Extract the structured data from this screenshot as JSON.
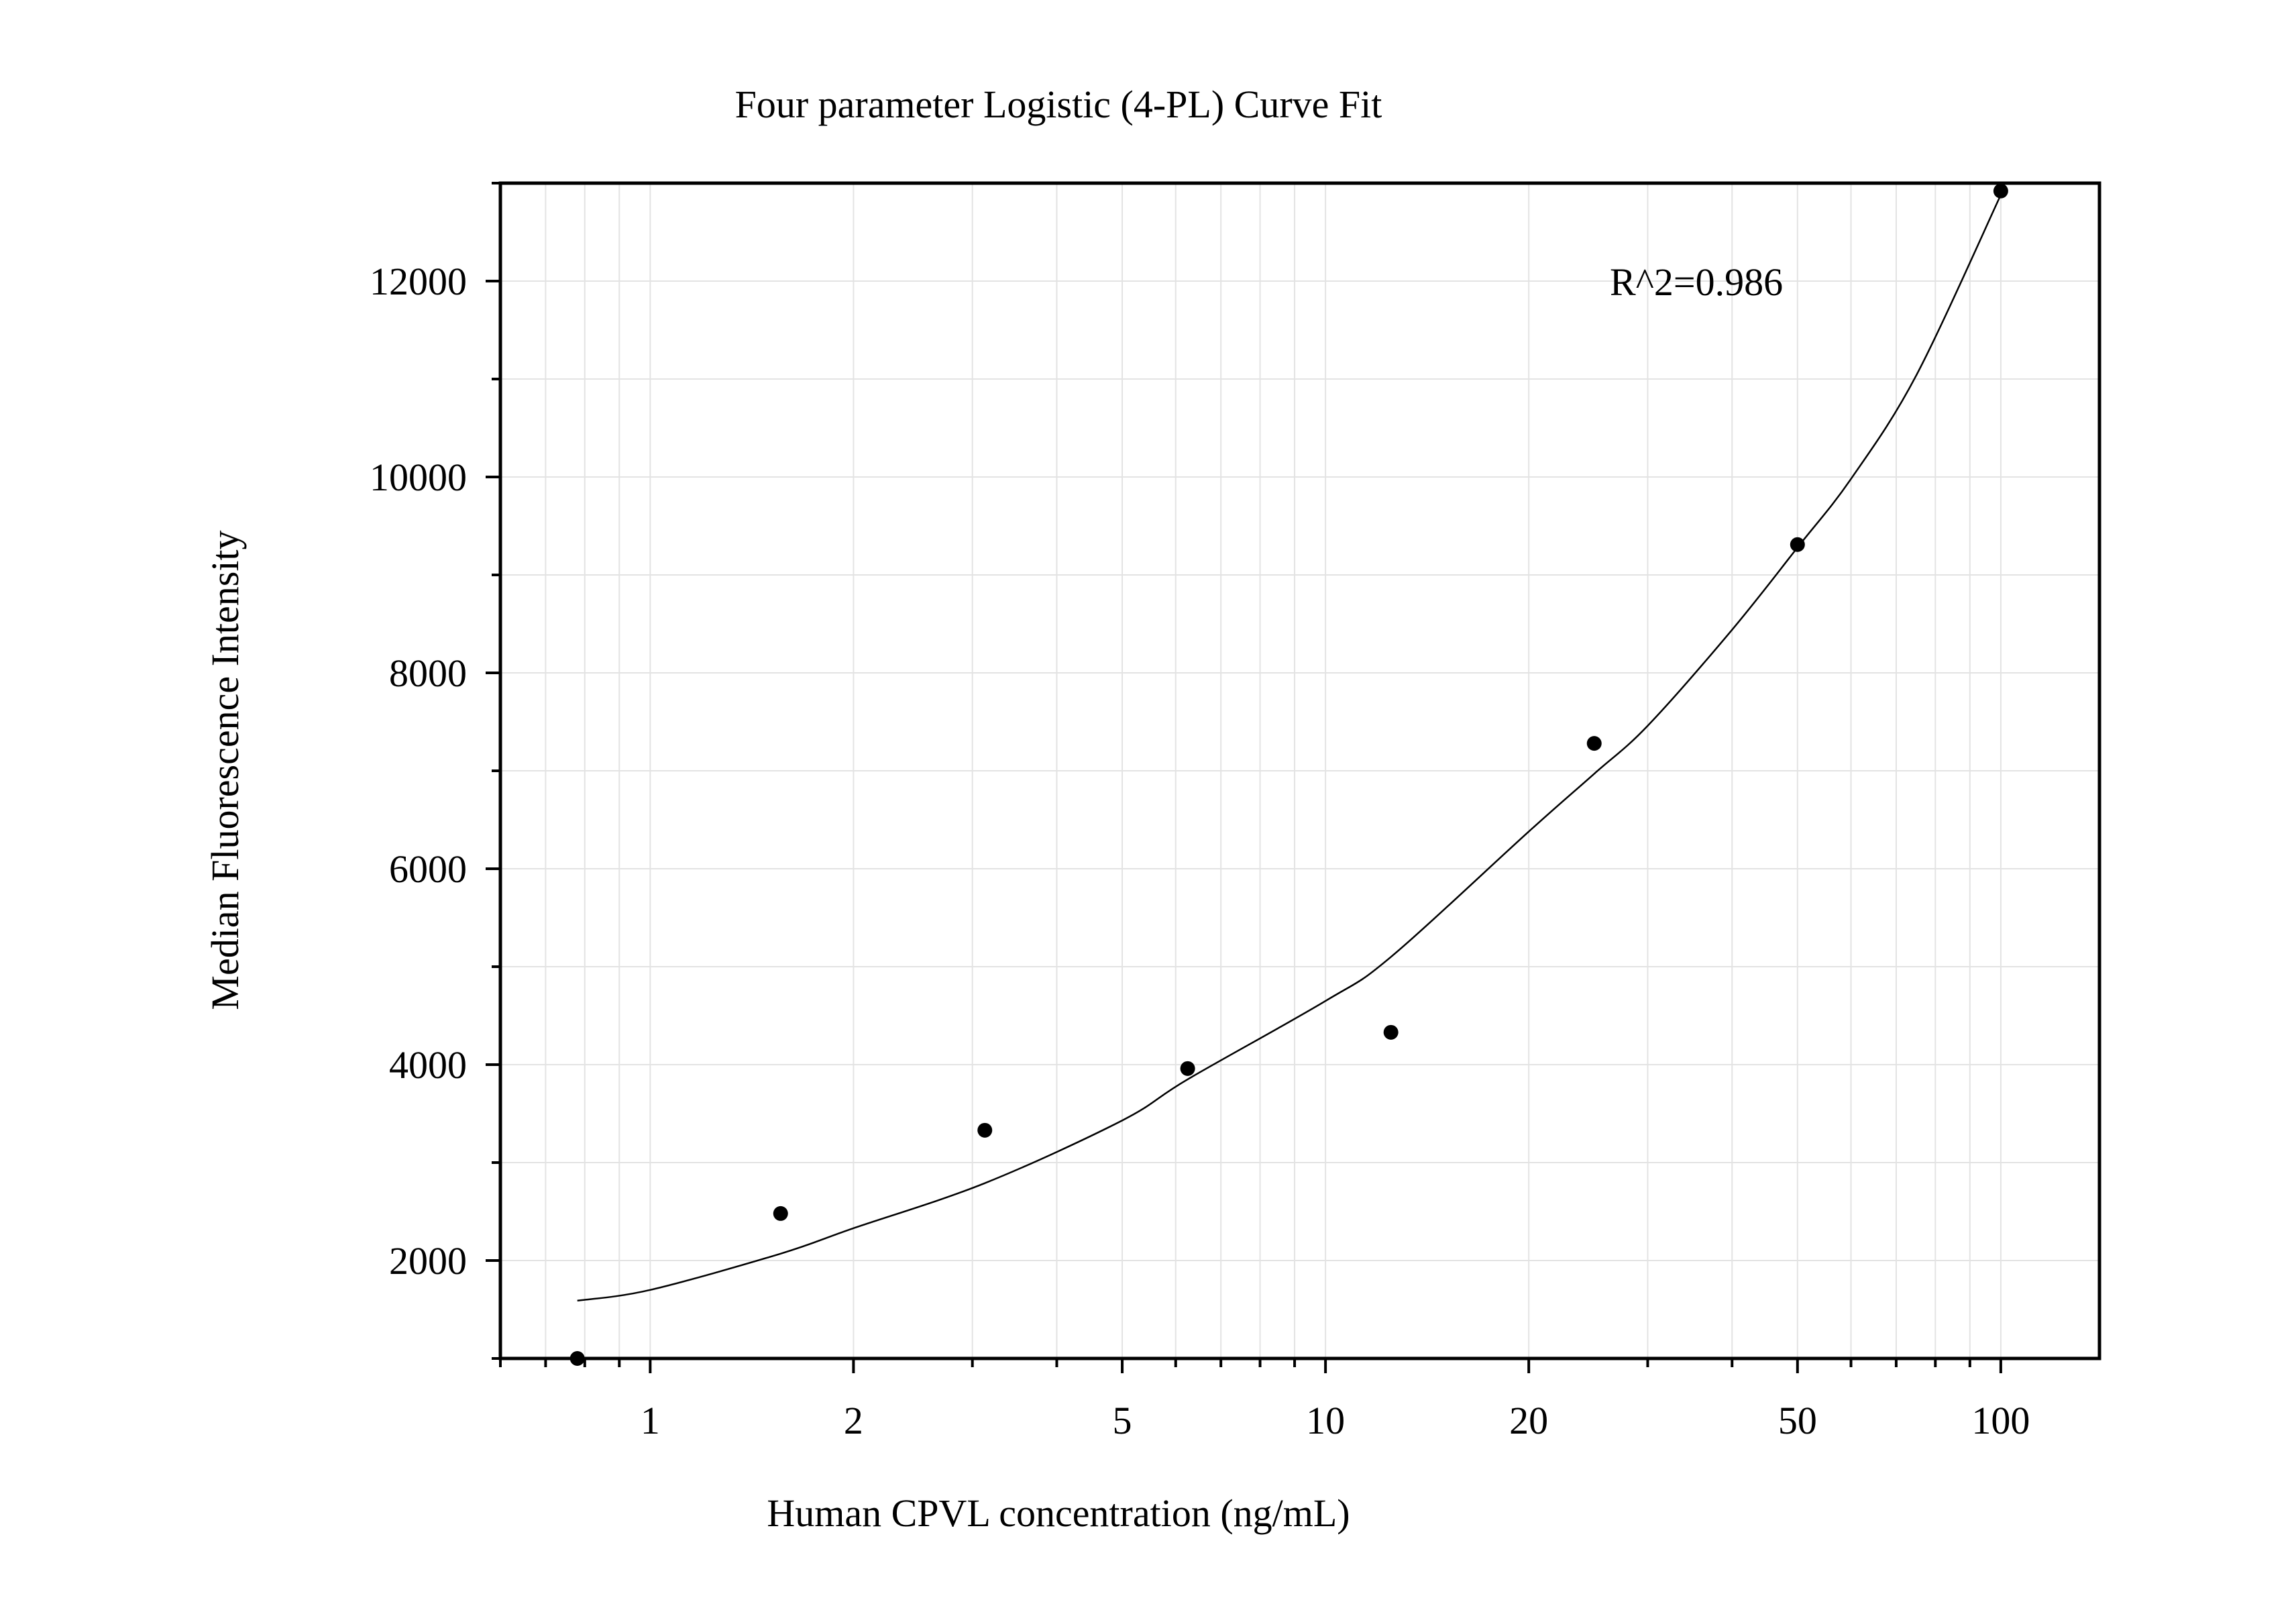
{
  "chart_data": {
    "type": "scatter",
    "title": "Four parameter Logistic (4-PL) Curve Fit",
    "xlabel": "Human CPVL concentration (ng/mL)",
    "ylabel": "Median Fluorescence Intensity",
    "x_scale": "log",
    "xlim": [
      0.6,
      140
    ],
    "ylim": [
      1000,
      13000
    ],
    "x_ticks": [
      1,
      2,
      5,
      10,
      20,
      50,
      100
    ],
    "x_tick_labels": [
      "1",
      "2",
      "5",
      "10",
      "20",
      "50",
      "100"
    ],
    "y_ticks": [
      2000,
      4000,
      6000,
      8000,
      10000,
      12000
    ],
    "y_tick_labels": [
      "2000",
      "4000",
      "6000",
      "8000",
      "10000",
      "12000"
    ],
    "grid": true,
    "annotation": "R^2=0.986",
    "series": [
      {
        "kind": "points",
        "x": [
          0.78,
          1.56,
          3.13,
          6.25,
          12.5,
          25,
          50,
          100
        ],
        "y": [
          1000,
          2480,
          3330,
          3960,
          4330,
          7280,
          9310,
          12920
        ]
      },
      {
        "kind": "fit-curve",
        "x": [
          0.78,
          1,
          1.56,
          2,
          3.13,
          5,
          6.25,
          10,
          12.5,
          20,
          25,
          30,
          40,
          50,
          60,
          75,
          100
        ],
        "y": [
          1590,
          1700,
          2070,
          2330,
          2790,
          3430,
          3850,
          4650,
          5100,
          6380,
          6970,
          7460,
          8440,
          9280,
          9980,
          11040,
          12880
        ]
      }
    ]
  }
}
